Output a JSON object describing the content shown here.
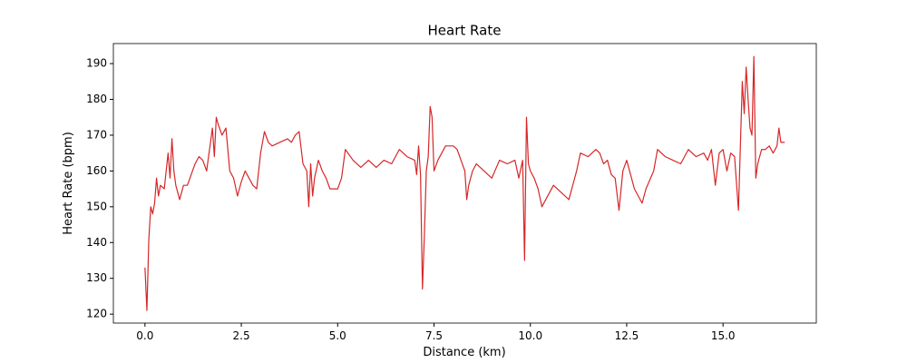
{
  "chart_data": {
    "type": "line",
    "title": "Heart Rate",
    "x_label": "Distance (km)",
    "y_label": "Heart Rate (bpm)",
    "color": "#d62728",
    "x": [
      0.0,
      0.05,
      0.1,
      0.15,
      0.2,
      0.25,
      0.3,
      0.35,
      0.4,
      0.5,
      0.55,
      0.6,
      0.65,
      0.7,
      0.75,
      0.8,
      0.9,
      1.0,
      1.1,
      1.2,
      1.3,
      1.4,
      1.5,
      1.6,
      1.7,
      1.75,
      1.8,
      1.85,
      1.9,
      2.0,
      2.1,
      2.2,
      2.3,
      2.4,
      2.5,
      2.6,
      2.7,
      2.8,
      2.9,
      3.0,
      3.1,
      3.2,
      3.3,
      3.5,
      3.7,
      3.8,
      3.9,
      4.0,
      4.1,
      4.2,
      4.25,
      4.3,
      4.35,
      4.4,
      4.5,
      4.6,
      4.7,
      4.8,
      5.0,
      5.1,
      5.2,
      5.4,
      5.6,
      5.8,
      6.0,
      6.2,
      6.4,
      6.6,
      6.8,
      7.0,
      7.05,
      7.1,
      7.15,
      7.2,
      7.25,
      7.3,
      7.35,
      7.4,
      7.45,
      7.5,
      7.6,
      7.7,
      7.8,
      8.0,
      8.1,
      8.2,
      8.3,
      8.35,
      8.4,
      8.5,
      8.6,
      8.8,
      9.0,
      9.2,
      9.4,
      9.6,
      9.7,
      9.8,
      9.85,
      9.9,
      9.95,
      10.0,
      10.1,
      10.2,
      10.3,
      10.4,
      10.6,
      10.8,
      11.0,
      11.2,
      11.3,
      11.5,
      11.7,
      11.8,
      11.9,
      12.0,
      12.1,
      12.2,
      12.3,
      12.4,
      12.5,
      12.6,
      12.7,
      12.8,
      12.9,
      13.0,
      13.2,
      13.3,
      13.5,
      13.7,
      13.9,
      14.1,
      14.3,
      14.5,
      14.6,
      14.7,
      14.8,
      14.9,
      15.0,
      15.1,
      15.2,
      15.3,
      15.4,
      15.45,
      15.5,
      15.55,
      15.6,
      15.65,
      15.7,
      15.75,
      15.8,
      15.85,
      15.9,
      16.0,
      16.1,
      16.2,
      16.3,
      16.4,
      16.45,
      16.5,
      16.6
    ],
    "values": [
      133,
      121,
      141,
      150,
      148,
      151,
      158,
      153,
      156,
      155,
      160,
      165,
      158,
      169,
      160,
      156,
      152,
      156,
      156,
      159,
      162,
      164,
      163,
      160,
      168,
      172,
      164,
      175,
      173,
      170,
      172,
      160,
      158,
      153,
      157,
      160,
      158,
      156,
      155,
      165,
      171,
      168,
      167,
      168,
      169,
      168,
      170,
      171,
      162,
      160,
      150,
      162,
      153,
      158,
      163,
      160,
      158,
      155,
      155,
      158,
      166,
      163,
      161,
      163,
      161,
      163,
      162,
      166,
      164,
      163,
      159,
      167,
      159,
      127,
      142,
      160,
      164,
      178,
      175,
      160,
      163,
      165,
      167,
      167,
      166,
      163,
      160,
      152,
      156,
      160,
      162,
      160,
      158,
      163,
      162,
      163,
      158,
      163,
      135,
      175,
      162,
      160,
      158,
      155,
      150,
      152,
      156,
      154,
      152,
      160,
      165,
      164,
      166,
      165,
      162,
      163,
      159,
      158,
      149,
      160,
      163,
      159,
      155,
      153,
      151,
      155,
      160,
      166,
      164,
      163,
      162,
      166,
      164,
      165,
      163,
      166,
      156,
      165,
      166,
      160,
      165,
      164,
      149,
      167,
      185,
      176,
      189,
      180,
      172,
      170,
      192,
      158,
      162,
      166,
      166,
      167,
      165,
      167,
      172,
      168,
      168
    ],
    "xlim": [
      -0.82,
      17.42
    ],
    "ylim": [
      117.5,
      195.6
    ],
    "xticks": [
      {
        "value": 0,
        "label": "0.0"
      },
      {
        "value": 2.5,
        "label": "2.5"
      },
      {
        "value": 5,
        "label": "5.0"
      },
      {
        "value": 7.5,
        "label": "7.5"
      },
      {
        "value": 10,
        "label": "10.0"
      },
      {
        "value": 12.5,
        "label": "12.5"
      },
      {
        "value": 15,
        "label": "15.0"
      }
    ],
    "yticks": [
      120,
      130,
      140,
      150,
      160,
      170,
      180,
      190
    ]
  }
}
